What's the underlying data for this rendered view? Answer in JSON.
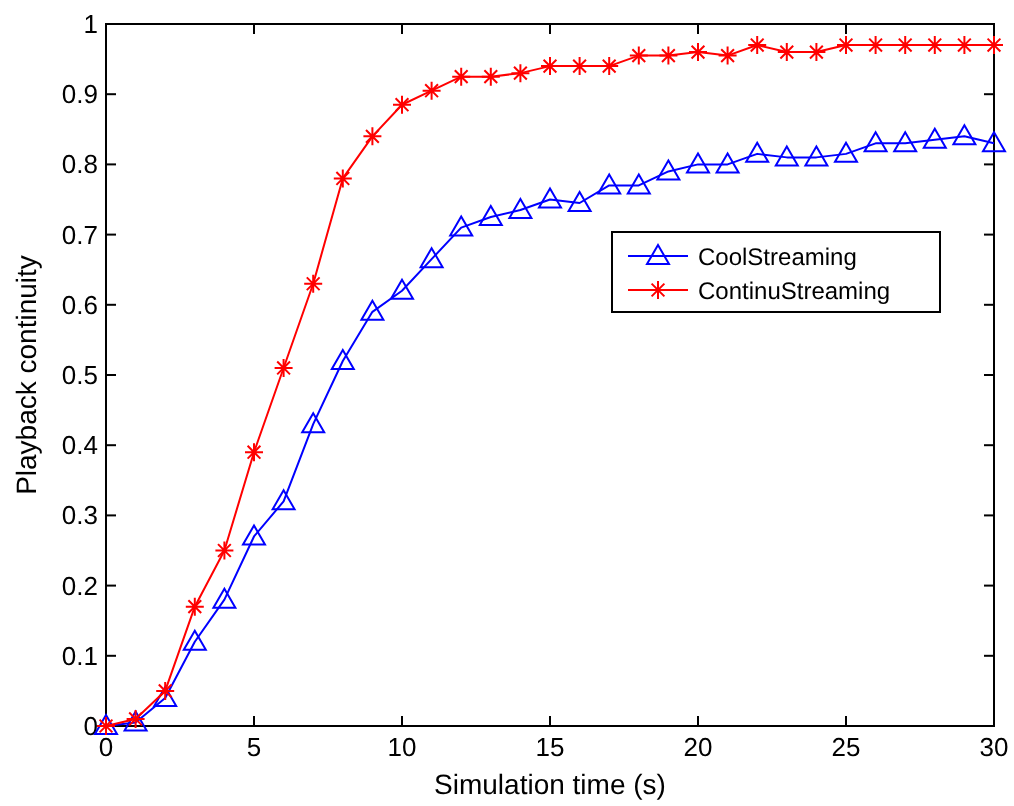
{
  "chart_data": {
    "type": "line",
    "xlabel": "Simulation time (s)",
    "ylabel": "Playback continuity",
    "x": [
      0,
      1,
      2,
      3,
      4,
      5,
      6,
      7,
      8,
      9,
      10,
      11,
      12,
      13,
      14,
      15,
      16,
      17,
      18,
      19,
      20,
      21,
      22,
      23,
      24,
      25,
      26,
      27,
      28,
      29,
      30
    ],
    "series": [
      {
        "name": "CoolStreaming",
        "color": "#0000ff",
        "marker": "triangle",
        "values": [
          0,
          0.005,
          0.04,
          0.12,
          0.18,
          0.27,
          0.32,
          0.43,
          0.52,
          0.59,
          0.62,
          0.665,
          0.71,
          0.725,
          0.735,
          0.75,
          0.745,
          0.77,
          0.77,
          0.79,
          0.8,
          0.8,
          0.815,
          0.81,
          0.81,
          0.815,
          0.83,
          0.83,
          0.835,
          0.84,
          0.83
        ]
      },
      {
        "name": "ContinuStreaming",
        "color": "#ff0000",
        "marker": "cross",
        "values": [
          0,
          0.01,
          0.05,
          0.17,
          0.25,
          0.39,
          0.51,
          0.63,
          0.78,
          0.84,
          0.885,
          0.905,
          0.925,
          0.925,
          0.93,
          0.94,
          0.94,
          0.94,
          0.955,
          0.955,
          0.96,
          0.955,
          0.97,
          0.96,
          0.96,
          0.97,
          0.97,
          0.97,
          0.97,
          0.97,
          0.97
        ]
      }
    ],
    "xlim": [
      0,
      30
    ],
    "xticks": [
      0,
      5,
      10,
      15,
      20,
      25,
      30
    ],
    "ylim": [
      0,
      1
    ],
    "yticks": [
      0,
      0.1,
      0.2,
      0.3,
      0.4,
      0.5,
      0.6,
      0.7,
      0.8,
      0.9,
      1
    ],
    "grid": false,
    "legend": "right",
    "line_style": "solid"
  }
}
